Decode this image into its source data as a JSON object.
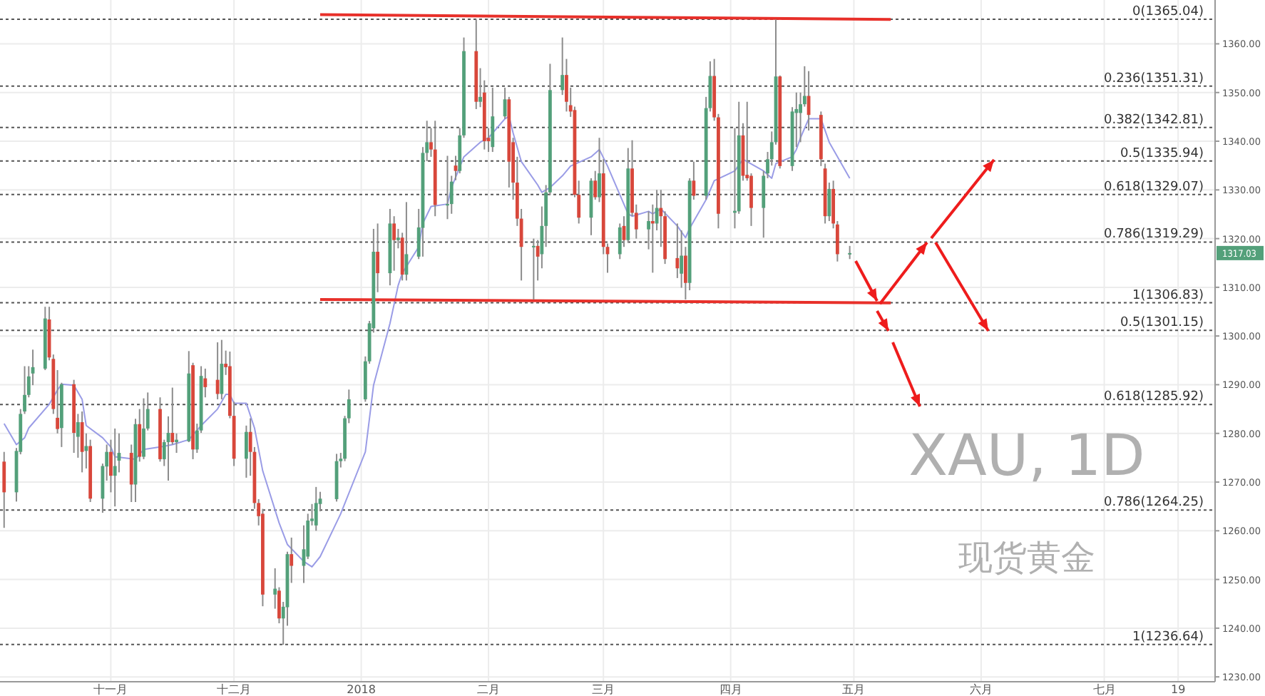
{
  "chart_data": {
    "type": "candlestick",
    "title": "XAU, 1D",
    "subtitle": "现货黄金",
    "x": [
      "2017-10-06",
      "2017-10-09",
      "2017-10-10",
      "2017-10-11",
      "2017-10-12",
      "2017-10-13",
      "2017-10-16",
      "2017-10-17",
      "2017-10-18",
      "2017-10-19",
      "2017-10-20",
      "2017-10-23",
      "2017-10-24",
      "2017-10-25",
      "2017-10-26",
      "2017-10-27",
      "2017-10-30",
      "2017-10-31",
      "2017-11-01",
      "2017-11-02",
      "2017-11-03",
      "2017-11-06",
      "2017-11-07",
      "2017-11-08",
      "2017-11-09",
      "2017-11-10",
      "2017-11-13",
      "2017-11-14",
      "2017-11-15",
      "2017-11-16",
      "2017-11-17",
      "2017-11-20",
      "2017-11-21",
      "2017-11-22",
      "2017-11-23",
      "2017-11-24",
      "2017-11-27",
      "2017-11-28",
      "2017-11-29",
      "2017-11-30",
      "2017-12-01",
      "2017-12-04",
      "2017-12-05",
      "2017-12-06",
      "2017-12-07",
      "2017-12-08",
      "2017-12-11",
      "2017-12-12",
      "2017-12-13",
      "2017-12-14",
      "2017-12-15",
      "2017-12-18",
      "2017-12-19",
      "2017-12-20",
      "2017-12-21",
      "2017-12-22",
      "2017-12-26",
      "2017-12-27",
      "2017-12-28",
      "2017-12-29",
      "2018-01-02",
      "2018-01-03",
      "2018-01-04",
      "2018-01-05",
      "2018-01-08",
      "2018-01-09",
      "2018-01-10",
      "2018-01-11",
      "2018-01-12",
      "2018-01-15",
      "2018-01-16",
      "2018-01-17",
      "2018-01-18",
      "2018-01-19",
      "2018-01-22",
      "2018-01-23",
      "2018-01-24",
      "2018-01-25",
      "2018-01-26",
      "2018-01-29",
      "2018-01-30",
      "2018-01-31",
      "2018-02-01",
      "2018-02-02",
      "2018-02-05",
      "2018-02-06",
      "2018-02-07",
      "2018-02-08",
      "2018-02-09",
      "2018-02-12",
      "2018-02-13",
      "2018-02-14",
      "2018-02-15",
      "2018-02-16",
      "2018-02-19",
      "2018-02-20",
      "2018-02-21",
      "2018-02-22",
      "2018-02-23",
      "2018-02-26",
      "2018-02-27",
      "2018-02-28",
      "2018-03-01",
      "2018-03-02",
      "2018-03-05",
      "2018-03-06",
      "2018-03-07",
      "2018-03-08",
      "2018-03-09",
      "2018-03-12",
      "2018-03-13",
      "2018-03-14",
      "2018-03-15",
      "2018-03-16",
      "2018-03-19",
      "2018-03-20",
      "2018-03-21",
      "2018-03-22",
      "2018-03-23",
      "2018-03-26",
      "2018-03-27",
      "2018-03-28",
      "2018-03-29",
      "2018-04-02",
      "2018-04-03",
      "2018-04-04",
      "2018-04-05",
      "2018-04-06",
      "2018-04-09",
      "2018-04-10",
      "2018-04-11",
      "2018-04-12",
      "2018-04-13",
      "2018-04-16",
      "2018-04-17",
      "2018-04-18",
      "2018-04-19",
      "2018-04-20",
      "2018-04-23",
      "2018-04-24",
      "2018-04-25",
      "2018-04-26",
      "2018-04-27",
      "2018-04-30"
    ],
    "ohlc": [
      [
        1274.2,
        1276.2,
        1260.6,
        1267.9
      ],
      [
        1267.9,
        1277.0,
        1266.0,
        1276.4
      ],
      [
        1276.2,
        1285.0,
        1275.7,
        1284.0
      ],
      [
        1284.5,
        1293.8,
        1284.0,
        1287.9
      ],
      [
        1287.9,
        1293.8,
        1287.4,
        1291.7
      ],
      [
        1292.3,
        1297.2,
        1289.9,
        1293.6
      ],
      [
        1293.3,
        1306.0,
        1293.0,
        1303.6
      ],
      [
        1303.4,
        1306.0,
        1295.0,
        1295.6
      ],
      [
        1295.3,
        1296.2,
        1284.0,
        1285.0
      ],
      [
        1283.2,
        1293.0,
        1280.0,
        1280.9
      ],
      [
        1281.1,
        1290.4,
        1277.2,
        1290.1
      ],
      [
        1290.1,
        1291.0,
        1276.0,
        1280.1
      ],
      [
        1279.3,
        1284.0,
        1275.0,
        1282.3
      ],
      [
        1282.3,
        1284.5,
        1272.0,
        1276.2
      ],
      [
        1276.4,
        1280.0,
        1272.8,
        1277.4
      ],
      [
        1277.4,
        1278.7,
        1265.9,
        1266.6
      ],
      [
        1266.6,
        1273.8,
        1263.7,
        1273.3
      ],
      [
        1273.2,
        1277.7,
        1270.3,
        1276.2
      ],
      [
        1276.2,
        1278.7,
        1267.9,
        1271.3
      ],
      [
        1271.3,
        1281.0,
        1265.0,
        1273.3
      ],
      [
        1274.4,
        1280.0,
        1272.0,
        1276.0
      ],
      [
        1276.0,
        1277.7,
        1265.9,
        1269.5
      ],
      [
        1269.5,
        1283.0,
        1265.9,
        1281.9
      ],
      [
        1281.9,
        1285.0,
        1274.2,
        1275.2
      ],
      [
        1275.2,
        1287.2,
        1274.7,
        1281.0
      ],
      [
        1281.0,
        1288.4,
        1280.6,
        1285.0
      ],
      [
        1285.0,
        1287.4,
        1274.2,
        1274.7
      ],
      [
        1274.7,
        1278.7,
        1273.3,
        1278.2
      ],
      [
        1278.2,
        1283.5,
        1270.3,
        1280.1
      ],
      [
        1280.1,
        1289.4,
        1277.7,
        1278.2
      ],
      [
        1278.2,
        1280.0,
        1276.0,
        1278.7
      ],
      [
        1278.4,
        1296.9,
        1278.2,
        1292.3
      ],
      [
        1294.0,
        1294.5,
        1274.7,
        1276.7
      ],
      [
        1276.7,
        1282.0,
        1276.0,
        1280.6
      ],
      [
        1280.6,
        1293.8,
        1280.1,
        1291.8
      ],
      [
        1291.3,
        1293.3,
        1287.4,
        1289.5
      ],
      [
        1291.0,
        1298.7,
        1287.0,
        1288.1
      ],
      [
        1288.1,
        1299.2,
        1287.0,
        1294.3
      ],
      [
        1294.3,
        1297.0,
        1292.0,
        1293.6
      ],
      [
        1293.8,
        1296.8,
        1283.1,
        1283.6
      ],
      [
        1283.6,
        1286.5,
        1273.3,
        1274.8
      ],
      [
        1274.8,
        1281.6,
        1270.9,
        1280.3
      ],
      [
        1280.3,
        1283.1,
        1271.3,
        1276.2
      ],
      [
        1276.2,
        1277.2,
        1264.5,
        1265.7
      ],
      [
        1265.7,
        1266.5,
        1261.1,
        1263.0
      ],
      [
        1263.5,
        1264.5,
        1244.5,
        1246.9
      ],
      [
        1246.9,
        1252.3,
        1244.0,
        1248.1
      ],
      [
        1247.7,
        1248.4,
        1241.0,
        1242.0
      ],
      [
        1242.0,
        1245.4,
        1236.6,
        1244.4
      ],
      [
        1244.3,
        1255.7,
        1240.5,
        1255.2
      ],
      [
        1255.2,
        1258.6,
        1249.3,
        1252.8
      ],
      [
        1252.8,
        1261.1,
        1249.3,
        1256.2
      ],
      [
        1254.7,
        1263.5,
        1254.2,
        1262.1
      ],
      [
        1262.0,
        1265.5,
        1261.1,
        1262.5
      ],
      [
        1261.1,
        1269.0,
        1260.0,
        1265.7
      ],
      [
        1265.5,
        1268.0,
        1264.0,
        1266.6
      ],
      [
        1266.5,
        1275.8,
        1266.0,
        1274.3
      ],
      [
        1274.3,
        1276.0,
        1273.0,
        1274.8
      ],
      [
        1274.8,
        1283.6,
        1274.3,
        1283.1
      ],
      [
        1283.1,
        1289.0,
        1282.1,
        1287.0
      ],
      [
        1287.0,
        1295.8,
        1286.5,
        1294.8
      ],
      [
        1294.8,
        1303.1,
        1294.3,
        1302.6
      ],
      [
        1301.6,
        1322.0,
        1300.7,
        1317.3
      ],
      [
        1317.3,
        1323.1,
        1309.0,
        1312.9
      ],
      [
        1312.9,
        1326.1,
        1310.4,
        1323.1
      ],
      [
        1323.1,
        1324.6,
        1313.4,
        1319.7
      ],
      [
        1319.7,
        1322.0,
        1318.0,
        1320.2
      ],
      [
        1320.2,
        1321.2,
        1311.4,
        1312.6
      ],
      [
        1312.6,
        1327.5,
        1311.4,
        1316.8
      ],
      [
        1316.3,
        1326.1,
        1315.8,
        1322.3
      ],
      [
        1322.2,
        1338.8,
        1316.3,
        1337.6
      ],
      [
        1337.6,
        1344.2,
        1335.9,
        1339.8
      ],
      [
        1339.8,
        1342.7,
        1336.8,
        1338.3
      ],
      [
        1338.3,
        1344.2,
        1324.6,
        1326.9
      ],
      [
        1326.9,
        1337.0,
        1324.0,
        1327.1
      ],
      [
        1327.1,
        1332.9,
        1325.1,
        1331.7
      ],
      [
        1335.0,
        1337.0,
        1332.0,
        1333.9
      ],
      [
        1333.9,
        1342.7,
        1333.4,
        1341.2
      ],
      [
        1341.2,
        1361.3,
        1340.7,
        1358.5
      ],
      [
        1358.5,
        1365.0,
        1346.6,
        1348.1
      ],
      [
        1348.1,
        1355.0,
        1347.0,
        1349.1
      ],
      [
        1350.0,
        1352.5,
        1338.3,
        1340.0
      ],
      [
        1340.7,
        1342.7,
        1337.8,
        1340.0
      ],
      [
        1338.8,
        1351.0,
        1337.8,
        1345.1
      ],
      [
        1345.1,
        1351.0,
        1344.6,
        1348.6
      ],
      [
        1348.6,
        1349.1,
        1330.5,
        1335.8
      ],
      [
        1339.8,
        1340.7,
        1328.0,
        1331.5
      ],
      [
        1331.5,
        1336.8,
        1322.6,
        1324.1
      ],
      [
        1324.1,
        1326.1,
        1311.4,
        1318.3
      ],
      [
        1318.3,
        1320.0,
        1307.5,
        1318.5
      ],
      [
        1318.5,
        1319.7,
        1311.4,
        1316.3
      ],
      [
        1316.8,
        1326.6,
        1313.9,
        1322.6
      ],
      [
        1322.6,
        1331.0,
        1318.3,
        1329.5
      ],
      [
        1329.5,
        1355.9,
        1329.0,
        1350.5
      ],
      [
        1350.5,
        1361.3,
        1349.5,
        1353.6
      ],
      [
        1353.6,
        1356.9,
        1346.1,
        1348.1
      ],
      [
        1347.4,
        1351.0,
        1345.0,
        1346.1
      ],
      [
        1346.4,
        1347.1,
        1328.5,
        1329.0
      ],
      [
        1329.0,
        1331.9,
        1323.1,
        1324.3
      ],
      [
        1324.3,
        1332.4,
        1320.7,
        1331.9
      ],
      [
        1331.9,
        1333.9,
        1328.0,
        1328.5
      ],
      [
        1328.5,
        1340.7,
        1327.5,
        1333.4
      ],
      [
        1333.4,
        1336.3,
        1316.8,
        1318.3
      ],
      [
        1318.3,
        1319.0,
        1313.0,
        1316.8
      ],
      [
        1316.8,
        1323.1,
        1315.8,
        1322.3
      ],
      [
        1322.6,
        1324.6,
        1318.3,
        1319.7
      ],
      [
        1319.7,
        1338.6,
        1319.2,
        1334.4
      ],
      [
        1334.4,
        1340.2,
        1324.6,
        1325.3
      ],
      [
        1325.3,
        1327.0,
        1320.0,
        1321.9
      ],
      [
        1321.9,
        1325.6,
        1317.8,
        1323.6
      ],
      [
        1323.6,
        1327.0,
        1313.0,
        1323.1
      ],
      [
        1323.1,
        1330.0,
        1321.7,
        1326.3
      ],
      [
        1326.3,
        1330.0,
        1318.3,
        1324.6
      ],
      [
        1324.6,
        1325.6,
        1314.8,
        1315.8
      ],
      [
        1316.0,
        1323.1,
        1311.9,
        1313.9
      ],
      [
        1312.8,
        1321.7,
        1309.9,
        1316.5
      ],
      [
        1316.5,
        1318.3,
        1307.5,
        1310.9
      ],
      [
        1310.9,
        1332.4,
        1309.4,
        1331.9
      ],
      [
        1331.9,
        1335.8,
        1328.0,
        1328.8
      ],
      [
        1328.8,
        1349.1,
        1328.0,
        1346.8
      ],
      [
        1346.8,
        1356.4,
        1346.1,
        1353.4
      ],
      [
        1353.4,
        1356.9,
        1344.2,
        1344.9
      ],
      [
        1344.9,
        1345.6,
        1322.1,
        1325.1
      ],
      [
        1325.3,
        1342.7,
        1322.1,
        1325.7
      ],
      [
        1325.6,
        1348.1,
        1325.1,
        1341.2
      ],
      [
        1341.2,
        1343.7,
        1331.9,
        1332.9
      ],
      [
        1333.1,
        1348.1,
        1331.9,
        1332.4
      ],
      [
        1332.9,
        1333.4,
        1322.6,
        1326.3
      ],
      [
        1326.3,
        1333.9,
        1320.2,
        1332.9
      ],
      [
        1333.4,
        1337.8,
        1332.4,
        1336.3
      ],
      [
        1336.3,
        1342.0,
        1335.0,
        1339.8
      ],
      [
        1339.8,
        1365.0,
        1339.3,
        1353.3
      ],
      [
        1353.3,
        1353.5,
        1334.4,
        1334.9
      ],
      [
        1334.9,
        1347.0,
        1333.9,
        1346.1
      ],
      [
        1345.8,
        1350.0,
        1338.8,
        1346.6
      ],
      [
        1345.8,
        1350.0,
        1339.8,
        1347.6
      ],
      [
        1347.6,
        1355.4,
        1347.1,
        1349.3
      ],
      [
        1349.3,
        1354.4,
        1342.2,
        1345.4
      ],
      [
        1345.4,
        1346.1,
        1334.9,
        1336.3
      ],
      [
        1334.4,
        1335.4,
        1323.1,
        1324.6
      ],
      [
        1324.6,
        1331.5,
        1323.6,
        1330.2
      ],
      [
        1330.2,
        1331.9,
        1322.1,
        1323.1
      ],
      [
        1322.9,
        1323.6,
        1315.3,
        1316.8
      ],
      [
        1316.8,
        1318.5,
        1315.8,
        1317.03
      ]
    ],
    "colors": [
      "#d8473b",
      "#53a07a",
      "#53a07a",
      "#53a07a",
      "#53a07a",
      "#53a07a",
      "#53a07a",
      "#d8473b",
      "#d8473b",
      "#d8473b",
      "#53a07a",
      "#d8473b",
      "#53a07a",
      "#d8473b",
      "#53a07a",
      "#d8473b",
      "#53a07a",
      "#53a07a",
      "#d8473b",
      "#53a07a",
      "#53a07a",
      "#d8473b",
      "#53a07a",
      "#d8473b",
      "#53a07a",
      "#53a07a",
      "#d8473b",
      "#53a07a",
      "#53a07a",
      "#d8473b",
      "#53a07a",
      "#53a07a",
      "#d8473b",
      "#53a07a",
      "#53a07a",
      "#d8473b",
      "#d8473b",
      "#53a07a",
      "#d8473b",
      "#d8473b",
      "#d8473b",
      "#53a07a",
      "#d8473b",
      "#d8473b",
      "#d8473b",
      "#d8473b",
      "#53a07a",
      "#d8473b",
      "#53a07a",
      "#53a07a",
      "#d8473b",
      "#53a07a",
      "#53a07a",
      "#53a07a",
      "#53a07a",
      "#53a07a",
      "#53a07a",
      "#53a07a",
      "#53a07a",
      "#53a07a",
      "#53a07a",
      "#53a07a",
      "#53a07a",
      "#d8473b",
      "#53a07a",
      "#d8473b",
      "#53a07a",
      "#d8473b",
      "#53a07a",
      "#53a07a",
      "#53a07a",
      "#53a07a",
      "#d8473b",
      "#d8473b",
      "#53a07a",
      "#53a07a",
      "#d8473b",
      "#53a07a",
      "#53a07a",
      "#d8473b",
      "#53a07a",
      "#d8473b",
      "#d8473b",
      "#53a07a",
      "#53a07a",
      "#d8473b",
      "#d8473b",
      "#d8473b",
      "#d8473b",
      "#53a07a",
      "#d8473b",
      "#53a07a",
      "#53a07a",
      "#53a07a",
      "#53a07a",
      "#d8473b",
      "#d8473b",
      "#d8473b",
      "#d8473b",
      "#53a07a",
      "#d8473b",
      "#53a07a",
      "#d8473b",
      "#d8473b",
      "#53a07a",
      "#d8473b",
      "#53a07a",
      "#d8473b",
      "#d8473b",
      "#53a07a",
      "#d8473b",
      "#53a07a",
      "#d8473b",
      "#d8473b",
      "#d8473b",
      "#53a07a",
      "#d8473b",
      "#53a07a",
      "#d8473b",
      "#53a07a",
      "#53a07a",
      "#d8473b",
      "#d8473b",
      "#53a07a",
      "#53a07a",
      "#d8473b",
      "#d8473b",
      "#d8473b",
      "#53a07a",
      "#53a07a",
      "#53a07a",
      "#53a07a",
      "#d8473b",
      "#53a07a",
      "#53a07a",
      "#53a07a",
      "#53a07a",
      "#d8473b",
      "#d8473b",
      "#d8473b",
      "#53a07a",
      "#d8473b",
      "#d8473b",
      "#53a07a"
    ],
    "series": [
      {
        "type": "line",
        "color": "#9a9ce6",
        "x": [
          "2017-10-06",
          "2017-10-09",
          "2017-10-11",
          "2017-10-12",
          "2017-10-17",
          "2017-10-19",
          "2017-10-20",
          "2017-10-23",
          "2017-10-25",
          "2017-10-26",
          "2017-10-30",
          "2017-11-01",
          "2017-11-02",
          "2017-11-07",
          "2017-11-09",
          "2017-11-13",
          "2017-11-16",
          "2017-11-20",
          "2017-11-23",
          "2017-11-27",
          "2017-11-29",
          "2017-11-30",
          "2017-12-01",
          "2017-12-04",
          "2017-12-06",
          "2017-12-08",
          "2017-12-12",
          "2017-12-14",
          "2017-12-18",
          "2017-12-20",
          "2017-12-22",
          "2017-12-27",
          "2018-01-02",
          "2018-01-04",
          "2018-01-08",
          "2018-01-10",
          "2018-01-11",
          "2018-01-15",
          "2018-01-16",
          "2018-01-18",
          "2018-01-22",
          "2018-01-23",
          "2018-01-26",
          "2018-01-30",
          "2018-02-01",
          "2018-02-05",
          "2018-02-06",
          "2018-02-07",
          "2018-02-09",
          "2018-02-13",
          "2018-02-14",
          "2018-02-16",
          "2018-02-19",
          "2018-02-21",
          "2018-02-26",
          "2018-02-28",
          "2018-03-02",
          "2018-03-05",
          "2018-03-07",
          "2018-03-08",
          "2018-03-12",
          "2018-03-13",
          "2018-03-15",
          "2018-03-19",
          "2018-03-21",
          "2018-03-22",
          "2018-03-26",
          "2018-03-28",
          "2018-04-02",
          "2018-04-04",
          "2018-04-05",
          "2018-04-09",
          "2018-04-11",
          "2018-04-12",
          "2018-04-16",
          "2018-04-17",
          "2018-04-18",
          "2018-04-20",
          "2018-04-23",
          "2018-04-25",
          "2018-04-30"
        ],
        "values": [
          1282,
          1277.7,
          1279.1,
          1281.1,
          1286,
          1288.9,
          1290.1,
          1289.9,
          1287,
          1281.6,
          1279.1,
          1277.2,
          1275.2,
          1274.7,
          1276.7,
          1277.2,
          1277.7,
          1278.7,
          1281.6,
          1285,
          1288,
          1288,
          1286.2,
          1286.2,
          1281.1,
          1272.3,
          1261.6,
          1257.2,
          1253.7,
          1252.6,
          1254.7,
          1263.5,
          1276.2,
          1289.9,
          1302.6,
          1310.4,
          1312.9,
          1318.3,
          1323.1,
          1326.6,
          1327.1,
          1330.5,
          1336.8,
          1339.8,
          1340.7,
          1344.6,
          1345.1,
          1341.7,
          1335.8,
          1331,
          1329.5,
          1330.5,
          1332.9,
          1334.9,
          1336.8,
          1338.3,
          1334.9,
          1329,
          1325.1,
          1324.6,
          1325.6,
          1325.1,
          1326.1,
          1322.6,
          1320.2,
          1322.1,
          1328,
          1331.9,
          1333.9,
          1336.3,
          1335.8,
          1333.9,
          1332.4,
          1335.4,
          1336.8,
          1338.3,
          1340.7,
          1344.6,
          1344.6,
          1339.8,
          1332.4
        ]
      },
      {
        "type": "line",
        "color": "#e8302a",
        "x": [
          "2017-12-22",
          "2018-05-10"
        ],
        "values": [
          1366,
          1365
        ]
      },
      {
        "type": "line",
        "color": "#e8302a",
        "x": [
          "2017-12-22",
          "2018-05-10"
        ],
        "values": [
          1307.5,
          1306.8
        ]
      }
    ],
    "xlim": [
      "2017-10-05",
      "2018-07-28"
    ],
    "xticks": [
      {
        "value": "2017-11-01",
        "label": "十一月"
      },
      {
        "value": "2017-12-01",
        "label": "十二月"
      },
      {
        "value": "2018-01-01",
        "label": "2018"
      },
      {
        "value": "2018-02-01",
        "label": "二月"
      },
      {
        "value": "2018-03-01",
        "label": "三月"
      },
      {
        "value": "2018-04-01",
        "label": "四月"
      },
      {
        "value": "2018-05-01",
        "label": "五月"
      },
      {
        "value": "2018-06-01",
        "label": "六月"
      },
      {
        "value": "2018-07-01",
        "label": "七月"
      },
      {
        "value": "2018-07-19",
        "label": "19"
      }
    ],
    "ylim": [
      1229,
      1369
    ],
    "yticks": [
      {
        "value": 1230,
        "label": "1230.00"
      },
      {
        "value": 1240,
        "label": "1240.00"
      },
      {
        "value": 1250,
        "label": "1250.00"
      },
      {
        "value": 1260,
        "label": "1260.00"
      },
      {
        "value": 1270,
        "label": "1270.00"
      },
      {
        "value": 1280,
        "label": "1280.00"
      },
      {
        "value": 1290,
        "label": "1290.00"
      },
      {
        "value": 1300,
        "label": "1300.00"
      },
      {
        "value": 1310,
        "label": "1310.00"
      },
      {
        "value": 1320,
        "label": "1320.00"
      },
      {
        "value": 1330,
        "label": "1330.00"
      },
      {
        "value": 1340,
        "label": "1340.00"
      },
      {
        "value": 1350,
        "label": "1350.00"
      },
      {
        "value": 1360,
        "label": "1360.00"
      }
    ],
    "grid": true,
    "ref_lines": [
      {
        "axis": "y",
        "value": 1365.04,
        "label": "0(1365.04)",
        "color": "#555555",
        "line_style": "dotted"
      },
      {
        "axis": "y",
        "value": 1351.31,
        "label": "0.236(1351.31)",
        "color": "#555555",
        "line_style": "dotted"
      },
      {
        "axis": "y",
        "value": 1342.81,
        "label": "0.382(1342.81)",
        "color": "#555555",
        "line_style": "dotted"
      },
      {
        "axis": "y",
        "value": 1335.94,
        "label": "0.5(1335.94)",
        "color": "#555555",
        "line_style": "dotted"
      },
      {
        "axis": "y",
        "value": 1329.07,
        "label": "0.618(1329.07)",
        "color": "#555555",
        "line_style": "dotted"
      },
      {
        "axis": "y",
        "value": 1319.29,
        "label": "0.786(1319.29)",
        "color": "#555555",
        "line_style": "dotted"
      },
      {
        "axis": "y",
        "value": 1306.83,
        "label": "1(1306.83)",
        "color": "#555555",
        "line_style": "dotted"
      },
      {
        "axis": "y",
        "value": 1301.15,
        "label": "0.5(1301.15)",
        "color": "#555555",
        "line_style": "dotted"
      },
      {
        "axis": "y",
        "value": 1285.92,
        "label": "0.618(1285.92)",
        "color": "#555555",
        "line_style": "dotted"
      },
      {
        "axis": "y",
        "value": 1264.25,
        "label": "0.786(1264.25)",
        "color": "#555555",
        "line_style": "dotted"
      },
      {
        "axis": "y",
        "value": 1236.64,
        "label": "1(1236.64)",
        "color": "#555555",
        "line_style": "dotted"
      }
    ],
    "annotations": [
      "1317.03"
    ]
  }
}
